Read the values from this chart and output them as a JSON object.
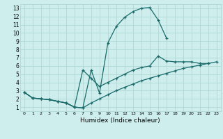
{
  "xlabel": "Humidex (Indice chaleur)",
  "bg_color": "#cdeeed",
  "grid_color": "#a8d5d1",
  "line_color": "#1a6b6b",
  "xlim": [
    -0.5,
    23.5
  ],
  "ylim": [
    0.5,
    13.5
  ],
  "xticks": [
    0,
    1,
    2,
    3,
    4,
    5,
    6,
    7,
    8,
    9,
    10,
    11,
    12,
    13,
    14,
    15,
    16,
    17,
    18,
    19,
    20,
    21,
    22,
    23
  ],
  "yticks": [
    1,
    2,
    3,
    4,
    5,
    6,
    7,
    8,
    9,
    10,
    11,
    12,
    13
  ],
  "line1_x": [
    0,
    1,
    2,
    3,
    4,
    5,
    6,
    7,
    8,
    9,
    10,
    11,
    12,
    13,
    14,
    15,
    16,
    17
  ],
  "line1_y": [
    2.8,
    2.1,
    2.0,
    1.9,
    1.7,
    1.5,
    1.0,
    0.9,
    5.5,
    2.7,
    8.8,
    10.8,
    11.9,
    12.6,
    13.0,
    13.1,
    11.6,
    9.4
  ],
  "line2_x": [
    0,
    1,
    2,
    3,
    4,
    5,
    6,
    7,
    8,
    9,
    10,
    11,
    12,
    13,
    14,
    15,
    16,
    17,
    18,
    19,
    20,
    21,
    22
  ],
  "line2_y": [
    2.8,
    2.1,
    2.0,
    1.9,
    1.7,
    1.5,
    1.0,
    5.5,
    4.5,
    3.5,
    4.0,
    4.5,
    5.0,
    5.5,
    5.8,
    6.0,
    7.2,
    6.6,
    6.5,
    6.5,
    6.5,
    6.3,
    6.3
  ],
  "line3_x": [
    0,
    1,
    2,
    3,
    4,
    5,
    6,
    7,
    8,
    9,
    10,
    11,
    12,
    13,
    14,
    15,
    16,
    17,
    18,
    19,
    20,
    21,
    22,
    23
  ],
  "line3_y": [
    2.8,
    2.1,
    2.0,
    1.9,
    1.7,
    1.5,
    1.0,
    0.9,
    1.5,
    2.0,
    2.5,
    3.0,
    3.4,
    3.8,
    4.2,
    4.5,
    4.8,
    5.1,
    5.4,
    5.7,
    5.9,
    6.1,
    6.3,
    6.5
  ]
}
